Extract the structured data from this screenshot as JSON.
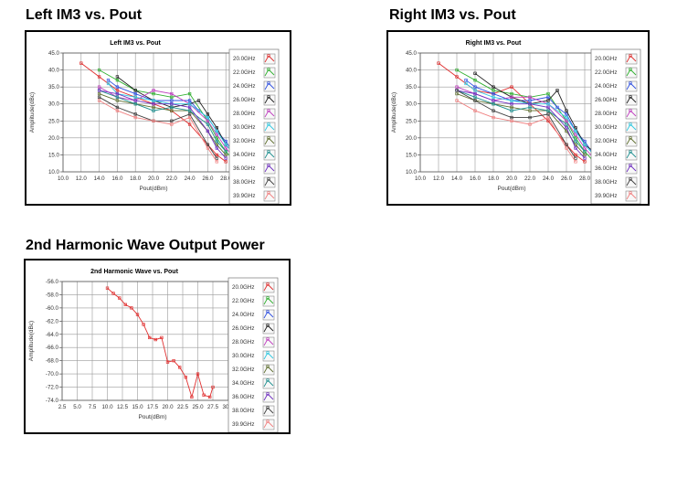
{
  "sections": {
    "left_im3": "Left  IM3 vs. Pout",
    "right_im3": "Right  IM3  vs.  Pout",
    "harmonic": "2nd Harmonic Wave Output Power"
  },
  "chart_data": [
    {
      "type": "line",
      "title": "Left IM3 vs. Pout",
      "xlabel": "Pout(dBm)",
      "ylabel": "Amplitude(dBc)",
      "xlim": [
        10,
        30
      ],
      "ylim": [
        10,
        45
      ],
      "xticks": [
        "10.0",
        "12.0",
        "14.0",
        "16.0",
        "18.0",
        "20.0",
        "22.0",
        "24.0",
        "26.0",
        "28.0",
        "30.0"
      ],
      "yticks": [
        "10.0",
        "15.0",
        "20.0",
        "25.0",
        "30.0",
        "35.0",
        "40.0",
        "45.0"
      ],
      "legend_position": "right",
      "series": [
        {
          "name": "20.0GHz",
          "color": "#e03030",
          "x": [
            12,
            14,
            16,
            18,
            20,
            22,
            24,
            26,
            27,
            28
          ],
          "y": [
            42,
            38,
            34,
            32,
            30,
            28,
            24,
            18,
            15,
            13
          ]
        },
        {
          "name": "22.0GHz",
          "color": "#30b030",
          "x": [
            14,
            16,
            18,
            20,
            22,
            24,
            26,
            27,
            28,
            29
          ],
          "y": [
            40,
            37,
            34,
            33,
            32,
            33,
            25,
            20,
            16,
            13
          ]
        },
        {
          "name": "24.0GHz",
          "color": "#3050e0",
          "x": [
            15,
            16,
            18,
            20,
            22,
            24,
            25,
            26,
            27,
            28,
            29,
            30
          ],
          "y": [
            37,
            35,
            33,
            31,
            31,
            31,
            28,
            26,
            22,
            19,
            15,
            12
          ]
        },
        {
          "name": "26.0GHz",
          "color": "#202020",
          "x": [
            16,
            18,
            20,
            22,
            24,
            25,
            26,
            27,
            28,
            29,
            30
          ],
          "y": [
            38,
            34,
            31,
            29,
            30,
            31,
            27,
            23,
            18,
            15,
            13
          ]
        },
        {
          "name": "28.0GHz",
          "color": "#c040c0",
          "x": [
            14,
            16,
            18,
            20,
            22,
            24,
            26,
            27,
            28,
            29
          ],
          "y": [
            35,
            32,
            31,
            34,
            33,
            30,
            25,
            21,
            17,
            14
          ]
        },
        {
          "name": "30.0GHz",
          "color": "#30c8e0",
          "x": [
            15,
            16,
            18,
            20,
            22,
            24,
            26,
            27,
            28,
            29
          ],
          "y": [
            36,
            33,
            32,
            31,
            30,
            30,
            26,
            22,
            18,
            15
          ]
        },
        {
          "name": "32.0GHz",
          "color": "#607030",
          "x": [
            14,
            16,
            18,
            20,
            22,
            24,
            26,
            27,
            28
          ],
          "y": [
            33,
            31,
            30,
            29,
            28,
            28,
            22,
            18,
            15
          ]
        },
        {
          "name": "34.0GHz",
          "color": "#209090",
          "x": [
            14,
            16,
            18,
            20,
            22,
            24,
            26,
            27,
            28
          ],
          "y": [
            34,
            32,
            30,
            28,
            29,
            28,
            24,
            19,
            16
          ]
        },
        {
          "name": "36.0GHz",
          "color": "#7030c0",
          "x": [
            14,
            16,
            18,
            20,
            22,
            24,
            26,
            27,
            28
          ],
          "y": [
            34,
            33,
            31,
            30,
            30,
            29,
            22,
            17,
            14
          ]
        },
        {
          "name": "38.0GHz",
          "color": "#404040",
          "x": [
            14,
            16,
            18,
            20,
            22,
            24,
            26,
            27
          ],
          "y": [
            32,
            29,
            27,
            25,
            25,
            27,
            18,
            14
          ]
        },
        {
          "name": "39.9GHz",
          "color": "#f08080",
          "x": [
            14,
            16,
            18,
            20,
            22,
            24,
            26,
            27
          ],
          "y": [
            31,
            28,
            26,
            25,
            24,
            26,
            17,
            13
          ]
        }
      ]
    },
    {
      "type": "line",
      "title": "Right IM3 vs. Pout",
      "xlabel": "Pout(dBm)",
      "ylabel": "Amplitude(dBc)",
      "xlim": [
        10,
        30
      ],
      "ylim": [
        10,
        45
      ],
      "xticks": [
        "10.0",
        "12.0",
        "14.0",
        "16.0",
        "18.0",
        "20.0",
        "22.0",
        "24.0",
        "26.0",
        "28.0",
        "30.0"
      ],
      "yticks": [
        "10.0",
        "15.0",
        "20.0",
        "25.0",
        "30.0",
        "35.0",
        "40.0",
        "45.0"
      ],
      "legend_position": "right",
      "series": [
        {
          "name": "20.0GHz",
          "color": "#e03030",
          "x": [
            12,
            14,
            16,
            18,
            20,
            22,
            24,
            26,
            27,
            28
          ],
          "y": [
            42,
            38,
            34,
            33,
            35,
            30,
            25,
            18,
            15,
            13
          ]
        },
        {
          "name": "22.0GHz",
          "color": "#30b030",
          "x": [
            14,
            16,
            18,
            20,
            22,
            24,
            26,
            27,
            28,
            29
          ],
          "y": [
            40,
            37,
            34,
            33,
            32,
            33,
            25,
            20,
            16,
            13
          ]
        },
        {
          "name": "24.0GHz",
          "color": "#3050e0",
          "x": [
            15,
            16,
            18,
            20,
            22,
            24,
            25,
            26,
            27,
            28,
            29,
            30
          ],
          "y": [
            37,
            35,
            33,
            31,
            31,
            32,
            29,
            27,
            22,
            19,
            15,
            13
          ]
        },
        {
          "name": "26.0GHz",
          "color": "#202020",
          "x": [
            16,
            18,
            20,
            22,
            24,
            25,
            26,
            27,
            28,
            29,
            30
          ],
          "y": [
            39,
            35,
            32,
            30,
            31,
            34,
            28,
            23,
            18,
            16,
            14
          ]
        },
        {
          "name": "28.0GHz",
          "color": "#c040c0",
          "x": [
            14,
            16,
            18,
            20,
            22,
            24,
            26,
            27,
            28,
            29
          ],
          "y": [
            35,
            33,
            31,
            32,
            32,
            30,
            25,
            21,
            17,
            14
          ]
        },
        {
          "name": "30.0GHz",
          "color": "#30c8e0",
          "x": [
            15,
            16,
            18,
            20,
            22,
            24,
            26,
            27,
            28,
            29
          ],
          "y": [
            36,
            34,
            32,
            31,
            30,
            30,
            26,
            22,
            18,
            15
          ]
        },
        {
          "name": "32.0GHz",
          "color": "#607030",
          "x": [
            14,
            16,
            18,
            20,
            22,
            24,
            26,
            27,
            28
          ],
          "y": [
            33,
            31,
            30,
            29,
            28,
            28,
            22,
            18,
            15
          ]
        },
        {
          "name": "34.0GHz",
          "color": "#209090",
          "x": [
            14,
            16,
            18,
            20,
            22,
            24,
            26,
            27,
            28
          ],
          "y": [
            34,
            32,
            30,
            28,
            29,
            28,
            24,
            19,
            16
          ]
        },
        {
          "name": "36.0GHz",
          "color": "#7030c0",
          "x": [
            14,
            16,
            18,
            20,
            22,
            24,
            26,
            27,
            28
          ],
          "y": [
            34,
            33,
            31,
            30,
            30,
            29,
            23,
            17,
            14
          ]
        },
        {
          "name": "38.0GHz",
          "color": "#404040",
          "x": [
            14,
            16,
            18,
            20,
            22,
            24,
            26,
            27
          ],
          "y": [
            34,
            31,
            28,
            26,
            26,
            27,
            18,
            14
          ]
        },
        {
          "name": "39.9GHz",
          "color": "#f08080",
          "x": [
            14,
            16,
            18,
            20,
            22,
            24,
            26,
            27
          ],
          "y": [
            31,
            28,
            26,
            25,
            24,
            26,
            17,
            13
          ]
        }
      ]
    },
    {
      "type": "line",
      "title": "2nd Harmonic Wave vs. Pout",
      "xlabel": "Pout(dBm)",
      "ylabel": "Amplitude(dBc)",
      "xlim": [
        2.5,
        32.5
      ],
      "ylim": [
        -74,
        -56
      ],
      "xticks": [
        "2.5",
        "5.0",
        "7.5",
        "10.0",
        "12.5",
        "15.0",
        "17.5",
        "20.0",
        "22.5",
        "25.0",
        "27.5",
        "30.0",
        "32.5"
      ],
      "yticks": [
        "-56.0",
        "-58.0",
        "-60.0",
        "-62.0",
        "-64.0",
        "-66.0",
        "-68.0",
        "-70.0",
        "-72.0",
        "-74.0"
      ],
      "legend_position": "right",
      "series": [
        {
          "name": "20.0GHz",
          "color": "#e03030",
          "x": [
            10,
            11,
            12,
            13,
            14,
            15,
            16,
            17,
            18,
            19,
            20,
            21,
            22,
            23,
            24,
            25,
            26,
            27,
            27.5
          ],
          "y": [
            -57,
            -57.8,
            -58.5,
            -59.5,
            -60,
            -61,
            -62.5,
            -64.5,
            -64.8,
            -64.5,
            -68.2,
            -68,
            -69,
            -70.5,
            -73.5,
            -70,
            -73.2,
            -73.5,
            -72
          ]
        },
        {
          "name": "22.0GHz",
          "color": "#30b030",
          "x": [],
          "y": []
        },
        {
          "name": "24.0GHz",
          "color": "#3050e0",
          "x": [],
          "y": []
        },
        {
          "name": "26.0GHz",
          "color": "#202020",
          "x": [],
          "y": []
        },
        {
          "name": "28.0GHz",
          "color": "#c040c0",
          "x": [],
          "y": []
        },
        {
          "name": "30.0GHz",
          "color": "#30c8e0",
          "x": [],
          "y": []
        },
        {
          "name": "32.0GHz",
          "color": "#607030",
          "x": [],
          "y": []
        },
        {
          "name": "34.0GHz",
          "color": "#209090",
          "x": [],
          "y": []
        },
        {
          "name": "36.0GHz",
          "color": "#7030c0",
          "x": [],
          "y": []
        },
        {
          "name": "38.0GHz",
          "color": "#404040",
          "x": [],
          "y": []
        },
        {
          "name": "39.9GHz",
          "color": "#f08080",
          "x": [],
          "y": []
        }
      ]
    }
  ]
}
